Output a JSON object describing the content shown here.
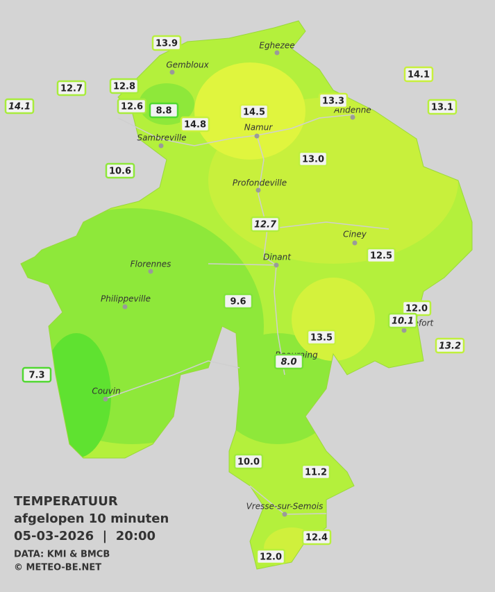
{
  "header": {
    "title": "TEMPERATUUR",
    "subtitle": "afgelopen 10 minuten",
    "datetime": "05-03-2026  |  20:00",
    "source": "DATA: KMI & BMCB",
    "copyright": "© METEO-BE.NET"
  },
  "cities": [
    {
      "name": "Eghezee"
    },
    {
      "name": "Gembloux"
    },
    {
      "name": "Andenne"
    },
    {
      "name": "Namur"
    },
    {
      "name": "Sambreville"
    },
    {
      "name": "Profondeville"
    },
    {
      "name": "Ciney"
    },
    {
      "name": "Florennes"
    },
    {
      "name": "Dinant"
    },
    {
      "name": "Philippeville"
    },
    {
      "name": "Rochefort"
    },
    {
      "name": "Beauraing"
    },
    {
      "name": "Couvin"
    },
    {
      "name": "Vresse-sur-Semois"
    }
  ],
  "stations": [
    {
      "value": "13.9"
    },
    {
      "value": "12.7"
    },
    {
      "value": "12.8"
    },
    {
      "value": "14.1"
    },
    {
      "value": "12.6"
    },
    {
      "value": "8.8"
    },
    {
      "value": "14.8"
    },
    {
      "value": "14.5"
    },
    {
      "value": "13.3"
    },
    {
      "value": "14.1"
    },
    {
      "value": "13.1"
    },
    {
      "value": "10.6"
    },
    {
      "value": "13.0"
    },
    {
      "value": "12.7"
    },
    {
      "value": "12.5"
    },
    {
      "value": "9.6"
    },
    {
      "value": "12.0"
    },
    {
      "value": "10.1"
    },
    {
      "value": "13.5"
    },
    {
      "value": "13.2"
    },
    {
      "value": "8.0"
    },
    {
      "value": "7.3"
    },
    {
      "value": "10.0"
    },
    {
      "value": "11.2"
    },
    {
      "value": "12.4"
    },
    {
      "value": "12.0"
    }
  ]
}
